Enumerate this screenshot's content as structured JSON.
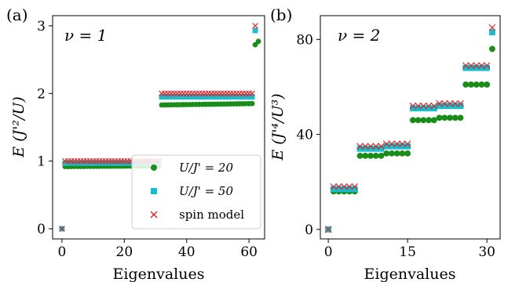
{
  "panel_labels": [
    "(a)",
    "(b)"
  ],
  "legend": {
    "items": [
      {
        "label": "U/J' = 20",
        "marker": "circle",
        "color": "#1a8c1a"
      },
      {
        "label": "U/J' = 50",
        "marker": "square",
        "color": "#17becf"
      },
      {
        "label": "spin model",
        "marker": "x",
        "color": "#d62728"
      }
    ]
  },
  "chart_data": [
    {
      "type": "scatter",
      "panel": "(a)",
      "annotation": "ν = 1",
      "xlabel": "Eigenvalues",
      "ylabel": "E (J'²/U)",
      "xlim": [
        -3,
        65
      ],
      "ylim": [
        -0.15,
        3.15
      ],
      "xticks": [
        0,
        20,
        40,
        60
      ],
      "yticks": [
        0,
        1,
        2,
        3
      ],
      "grid": false,
      "legend_position": "lower-right",
      "series": [
        {
          "name": "U/J' = 20",
          "marker": "circle",
          "color": "#1a8c1a",
          "segments": [
            {
              "x_start": 0,
              "x_end": 0,
              "y_start": 0.0,
              "y_end": 0.0
            },
            {
              "x_start": 1,
              "x_end": 31,
              "y_start": 0.92,
              "y_end": 0.93
            },
            {
              "x_start": 32,
              "x_end": 61,
              "y_start": 1.83,
              "y_end": 1.85
            },
            {
              "x_start": 62,
              "x_end": 62,
              "y_start": 2.72,
              "y_end": 2.72
            },
            {
              "x_start": 63,
              "x_end": 63,
              "y_start": 2.77,
              "y_end": 2.77
            }
          ]
        },
        {
          "name": "U/J' = 50",
          "marker": "square",
          "color": "#17becf",
          "segments": [
            {
              "x_start": 0,
              "x_end": 0,
              "y_start": 0.0,
              "y_end": 0.0
            },
            {
              "x_start": 1,
              "x_end": 31,
              "y_start": 0.97,
              "y_end": 0.97
            },
            {
              "x_start": 32,
              "x_end": 61,
              "y_start": 1.95,
              "y_end": 1.95
            },
            {
              "x_start": 62,
              "x_end": 62,
              "y_start": 2.93,
              "y_end": 2.93
            }
          ]
        },
        {
          "name": "spin model",
          "marker": "x",
          "color": "#d62728",
          "segments": [
            {
              "x_start": 0,
              "x_end": 0,
              "y_start": 0.0,
              "y_end": 0.0
            },
            {
              "x_start": 1,
              "x_end": 31,
              "y_start": 1.0,
              "y_end": 1.0
            },
            {
              "x_start": 32,
              "x_end": 61,
              "y_start": 2.0,
              "y_end": 2.0
            },
            {
              "x_start": 62,
              "x_end": 62,
              "y_start": 3.0,
              "y_end": 3.0
            }
          ]
        }
      ]
    },
    {
      "type": "scatter",
      "panel": "(b)",
      "annotation": "ν = 2",
      "xlabel": "Eigenvalues",
      "ylabel": "E (J'⁴/U³)",
      "xlim": [
        -1.5,
        32.5
      ],
      "ylim": [
        -4,
        90
      ],
      "xticks": [
        0,
        15,
        30
      ],
      "yticks": [
        0,
        40,
        80
      ],
      "grid": false,
      "series": [
        {
          "name": "U/J' = 20",
          "marker": "circle",
          "color": "#1a8c1a",
          "segments": [
            {
              "x_start": 0,
              "x_end": 0,
              "y_start": 0,
              "y_end": 0
            },
            {
              "x_start": 1,
              "x_end": 5,
              "y_start": 16,
              "y_end": 16
            },
            {
              "x_start": 6,
              "x_end": 10,
              "y_start": 31,
              "y_end": 31
            },
            {
              "x_start": 11,
              "x_end": 15,
              "y_start": 32,
              "y_end": 32
            },
            {
              "x_start": 16,
              "x_end": 20,
              "y_start": 46,
              "y_end": 46
            },
            {
              "x_start": 21,
              "x_end": 25,
              "y_start": 47,
              "y_end": 47
            },
            {
              "x_start": 26,
              "x_end": 30,
              "y_start": 61,
              "y_end": 61
            },
            {
              "x_start": 31,
              "x_end": 31,
              "y_start": 76,
              "y_end": 76
            }
          ]
        },
        {
          "name": "U/J' = 50",
          "marker": "square",
          "color": "#17becf",
          "segments": [
            {
              "x_start": 0,
              "x_end": 0,
              "y_start": 0,
              "y_end": 0
            },
            {
              "x_start": 1,
              "x_end": 5,
              "y_start": 17,
              "y_end": 17
            },
            {
              "x_start": 6,
              "x_end": 10,
              "y_start": 34,
              "y_end": 34
            },
            {
              "x_start": 11,
              "x_end": 15,
              "y_start": 35,
              "y_end": 35
            },
            {
              "x_start": 16,
              "x_end": 20,
              "y_start": 51,
              "y_end": 51
            },
            {
              "x_start": 21,
              "x_end": 25,
              "y_start": 52,
              "y_end": 52
            },
            {
              "x_start": 26,
              "x_end": 30,
              "y_start": 68,
              "y_end": 68
            },
            {
              "x_start": 31,
              "x_end": 31,
              "y_start": 83,
              "y_end": 83
            }
          ]
        },
        {
          "name": "spin model",
          "marker": "x",
          "color": "#d62728",
          "segments": [
            {
              "x_start": 0,
              "x_end": 0,
              "y_start": 0,
              "y_end": 0
            },
            {
              "x_start": 1,
              "x_end": 5,
              "y_start": 18,
              "y_end": 18
            },
            {
              "x_start": 6,
              "x_end": 10,
              "y_start": 35,
              "y_end": 35
            },
            {
              "x_start": 11,
              "x_end": 15,
              "y_start": 36,
              "y_end": 36
            },
            {
              "x_start": 16,
              "x_end": 20,
              "y_start": 52,
              "y_end": 52
            },
            {
              "x_start": 21,
              "x_end": 25,
              "y_start": 53,
              "y_end": 53
            },
            {
              "x_start": 26,
              "x_end": 30,
              "y_start": 69,
              "y_end": 69
            },
            {
              "x_start": 31,
              "x_end": 31,
              "y_start": 85,
              "y_end": 85
            }
          ]
        }
      ]
    }
  ]
}
